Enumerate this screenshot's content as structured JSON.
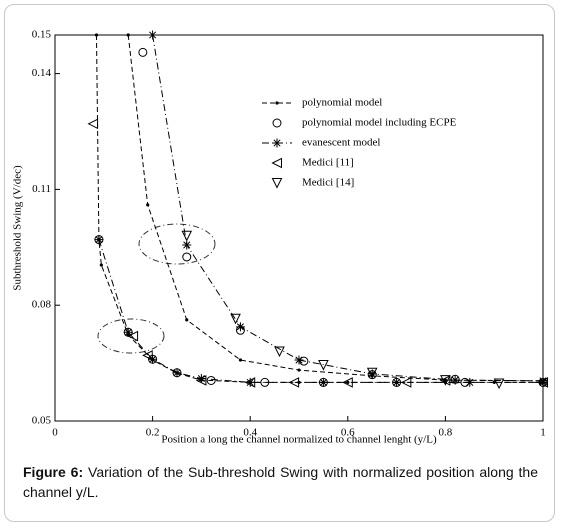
{
  "chart_data": {
    "type": "line",
    "xlabel": "Position a long the channel normalized to channel lenght (y/L)",
    "ylabel": "Subthreshold Swing (V/dec)",
    "xlim": [
      0,
      1
    ],
    "xticks": [
      0,
      0.2,
      0.4,
      0.6,
      0.8,
      1
    ],
    "ylim": [
      0.05,
      0.15
    ],
    "yticks": [
      0.05,
      0.08,
      0.11,
      0.14,
      0.15
    ],
    "legend": "upper right",
    "series": [
      {
        "name": "polynomial model",
        "color": "#000000",
        "line": "dashed",
        "marker": "dot",
        "x": [
          0.085,
          0.09,
          0.095,
          0.15,
          0.2,
          0.25,
          0.3,
          0.4,
          0.5,
          0.6,
          0.7,
          0.8,
          0.9,
          1,
          null,
          0.15,
          0.19,
          0.27,
          0.38,
          0.5,
          0.65,
          0.8,
          1
        ],
        "values": [
          0.15,
          0.097,
          0.0904,
          0.0723,
          0.0658,
          0.0624,
          0.0606,
          0.06,
          0.06,
          0.06,
          0.06,
          0.06,
          0.06,
          0.06,
          null,
          0.15,
          0.106,
          0.0762,
          0.0658,
          0.0632,
          0.0617,
          0.0606,
          0.0604
        ]
      },
      {
        "name": "polynomial model including ECPE",
        "color": "#000000",
        "line": "none",
        "marker": "circle",
        "x": [
          0.09,
          0.15,
          0.2,
          0.25,
          0.32,
          0.43,
          0.55,
          0.7,
          0.84,
          1,
          0.18,
          0.27,
          0.38,
          0.51,
          0.65,
          0.82
        ],
        "values": [
          0.097,
          0.073,
          0.066,
          0.0625,
          0.0605,
          0.06,
          0.06,
          0.06,
          0.06,
          0.06,
          0.1455,
          0.0925,
          0.0735,
          0.0655,
          0.062,
          0.0608
        ]
      },
      {
        "name": "evanescent model",
        "color": "#000000",
        "line": "dashdot",
        "marker": "star",
        "x": [
          0.09,
          0.15,
          0.2,
          0.25,
          0.3,
          0.4,
          0.55,
          0.7,
          0.85,
          1,
          null,
          0.2,
          0.27,
          0.38,
          0.5,
          0.65,
          0.82,
          1
        ],
        "values": [
          0.097,
          0.073,
          0.066,
          0.0625,
          0.061,
          0.06,
          0.06,
          0.06,
          0.06,
          0.06,
          null,
          0.15,
          0.0956,
          0.0744,
          0.0658,
          0.0622,
          0.0606,
          0.0604
        ]
      },
      {
        "name": "Medici [11]",
        "color": "#000000",
        "line": "none",
        "marker": "triangle-left",
        "x": [
          0.078,
          0.16,
          0.19,
          0.3,
          0.4,
          0.49,
          0.6,
          0.72,
          0.8,
          1
        ],
        "values": [
          0.127,
          0.072,
          0.067,
          0.0605,
          0.06,
          0.06,
          0.06,
          0.06,
          0.0605,
          0.06
        ]
      },
      {
        "name": "Medici [14]",
        "color": "#000000",
        "line": "none",
        "marker": "triangle-down",
        "x": [
          0.27,
          0.37,
          0.46,
          0.55,
          0.65,
          0.8,
          0.91
        ],
        "values": [
          0.098,
          0.0765,
          0.068,
          0.0645,
          0.0625,
          0.0606,
          0.0597
        ]
      }
    ]
  },
  "caption": {
    "label": "Figure 6:",
    "text": "Variation of the Sub-threshold Swing with normalized position along the channel y/L."
  }
}
